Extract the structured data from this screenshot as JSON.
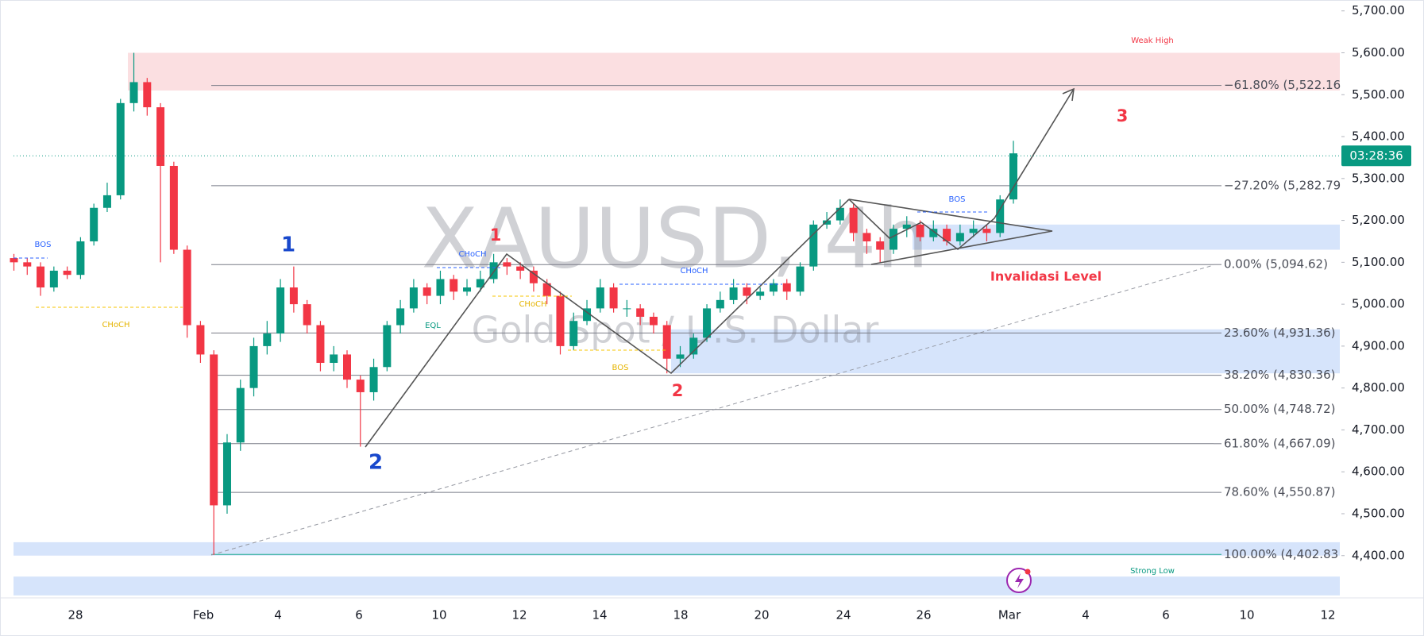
{
  "chart_data": {
    "type": "candlestick",
    "title": "XAUUSD, 4h",
    "subtitle": "Gold Spot / U.S. Dollar",
    "up_color": "#089981",
    "down_color": "#f23645",
    "open": [
      5110,
      5100,
      5090,
      5040,
      5080,
      5070,
      5150,
      5230,
      5260,
      5480,
      5530,
      5470,
      5330,
      5130,
      4950,
      4880,
      4520,
      4670,
      4800,
      4900,
      4930,
      5040,
      5000,
      4950,
      4860,
      4880,
      4820,
      4790,
      4850,
      4950,
      4990,
      5040,
      5020,
      5060,
      5030,
      5040,
      5060,
      5100,
      5090,
      5080,
      5050,
      5020,
      4900,
      4960,
      4990,
      5040,
      4990,
      4990,
      4970,
      4950,
      4870,
      4880,
      4920,
      4990,
      5010,
      5040,
      5020,
      5030,
      5050,
      5030,
      5090,
      5190,
      5200,
      5230,
      5170,
      5150,
      5130,
      5180,
      5190,
      5160,
      5180,
      5150,
      5170,
      5180,
      5170,
      5250
    ],
    "high": [
      5120,
      5110,
      5100,
      5090,
      5090,
      5160,
      5240,
      5290,
      5490,
      5600,
      5540,
      5480,
      5340,
      5140,
      4960,
      4890,
      4690,
      4820,
      4920,
      4960,
      5060,
      5090,
      5010,
      4960,
      4900,
      4890,
      4830,
      4870,
      4960,
      5010,
      5060,
      5050,
      5080,
      5070,
      5060,
      5080,
      5120,
      5110,
      5100,
      5090,
      5060,
      5030,
      4980,
      5010,
      5060,
      5050,
      5010,
      5000,
      4980,
      4960,
      4900,
      4930,
      5000,
      5030,
      5060,
      5050,
      5040,
      5060,
      5060,
      5100,
      5200,
      5220,
      5250,
      5240,
      5180,
      5160,
      5190,
      5210,
      5200,
      5200,
      5190,
      5190,
      5200,
      5190,
      5260,
      5390
    ],
    "low": [
      5080,
      5070,
      5020,
      5030,
      5060,
      5060,
      5140,
      5220,
      5250,
      5460,
      5450,
      5100,
      5120,
      4920,
      4860,
      4402,
      4500,
      4650,
      4780,
      4880,
      4910,
      4980,
      4930,
      4840,
      4840,
      4800,
      4660,
      4770,
      4840,
      4930,
      4980,
      5000,
      5000,
      5010,
      5020,
      5030,
      5050,
      5070,
      5060,
      5030,
      5000,
      4880,
      4890,
      4950,
      4980,
      4980,
      4970,
      4950,
      4930,
      4835,
      4850,
      4870,
      4910,
      4980,
      5000,
      5000,
      5010,
      5020,
      5010,
      5020,
      5080,
      5180,
      5190,
      5150,
      5120,
      5100,
      5120,
      5160,
      5150,
      5150,
      5140,
      5140,
      5160,
      5150,
      5160,
      5240
    ],
    "close": [
      5100,
      5090,
      5040,
      5080,
      5070,
      5150,
      5230,
      5260,
      5480,
      5530,
      5470,
      5330,
      5130,
      4950,
      4880,
      4520,
      4670,
      4800,
      4900,
      4930,
      5040,
      5000,
      4950,
      4860,
      4880,
      4820,
      4790,
      4850,
      4950,
      4990,
      5040,
      5020,
      5060,
      5030,
      5040,
      5060,
      5100,
      5090,
      5080,
      5050,
      5020,
      4900,
      4960,
      4990,
      5040,
      4990,
      4990,
      4970,
      4950,
      4870,
      4880,
      4920,
      4990,
      5010,
      5040,
      5020,
      5030,
      5050,
      5030,
      5090,
      5190,
      5200,
      5230,
      5170,
      5150,
      5130,
      5180,
      5190,
      5160,
      5180,
      5150,
      5170,
      5180,
      5170,
      5250,
      5360
    ],
    "ylim": [
      4301,
      5726
    ],
    "yticks": [
      {
        "value": 5700,
        "label": "5,700.00"
      },
      {
        "value": 5600,
        "label": "5,600.00"
      },
      {
        "value": 5500,
        "label": "5,500.00"
      },
      {
        "value": 5400,
        "label": "5,400.00"
      },
      {
        "value": 5300,
        "label": "5,300.00"
      },
      {
        "value": 5200,
        "label": "5,200.00"
      },
      {
        "value": 5100,
        "label": "5,100.00"
      },
      {
        "value": 5000,
        "label": "5,000.00"
      },
      {
        "value": 4900,
        "label": "4,900.00"
      },
      {
        "value": 4800,
        "label": "4,800.00"
      },
      {
        "value": 4700,
        "label": "4,700.00"
      },
      {
        "value": 4600,
        "label": "4,600.00"
      },
      {
        "value": 4500,
        "label": "4,500.00"
      },
      {
        "value": 4400,
        "label": "4,400.00"
      }
    ],
    "xticks": [
      "28",
      "Feb",
      "4",
      "6",
      "10",
      "12",
      "14",
      "18",
      "20",
      "24",
      "26",
      "Mar",
      "4",
      "6",
      "10",
      "12"
    ],
    "last_price": 5354,
    "countdown": "03:28:36",
    "levels": [
      {
        "label": "−61.80% (5,522.16",
        "value": 5522.16,
        "color": "#787b86"
      },
      {
        "label": "−27.20% (5,282.79",
        "value": 5282.79,
        "color": "#787b86"
      },
      {
        "label": "0.00% (5,094.62)",
        "value": 5094.62,
        "color": "#787b86"
      },
      {
        "label": "23.60% (4,931.36)",
        "value": 4931.36,
        "color": "#787b86"
      },
      {
        "label": "38.20% (4,830.36)",
        "value": 4830.36,
        "color": "#787b86"
      },
      {
        "label": "50.00% (4,748.72)",
        "value": 4748.72,
        "color": "#787b86"
      },
      {
        "label": "61.80% (4,667.09)",
        "value": 4667.09,
        "color": "#787b86"
      },
      {
        "label": "78.60% (4,550.87)",
        "value": 4550.87,
        "color": "#787b86"
      },
      {
        "label": "100.00% (4,402.83",
        "value": 4402.83,
        "color": "#22ab94"
      }
    ],
    "zones": [
      {
        "range": [
          5510,
          5600
        ],
        "color": "#fbdfe1"
      },
      {
        "range": [
          5130,
          5190
        ],
        "color": "#d6e4fb"
      },
      {
        "range": [
          4835,
          4940
        ],
        "color": "#d6e4fb"
      },
      {
        "range": [
          4400,
          4432
        ],
        "color": "#d6e4fb"
      },
      {
        "range": [
          4305,
          4350
        ],
        "color": "#d6e4fb"
      }
    ],
    "zone_labels": {
      "weak_high": "Weak High",
      "strong_low": "Strong Low"
    },
    "wave_labels": [
      "1",
      "2",
      "1",
      "2",
      "3"
    ],
    "structure_labels": [
      "BOS",
      "CHoCH",
      "CHoCH",
      "CHoCH",
      "EQL",
      "BOS",
      "CHoCH",
      "BOS"
    ],
    "invalidation": "Invalidasi Level"
  }
}
